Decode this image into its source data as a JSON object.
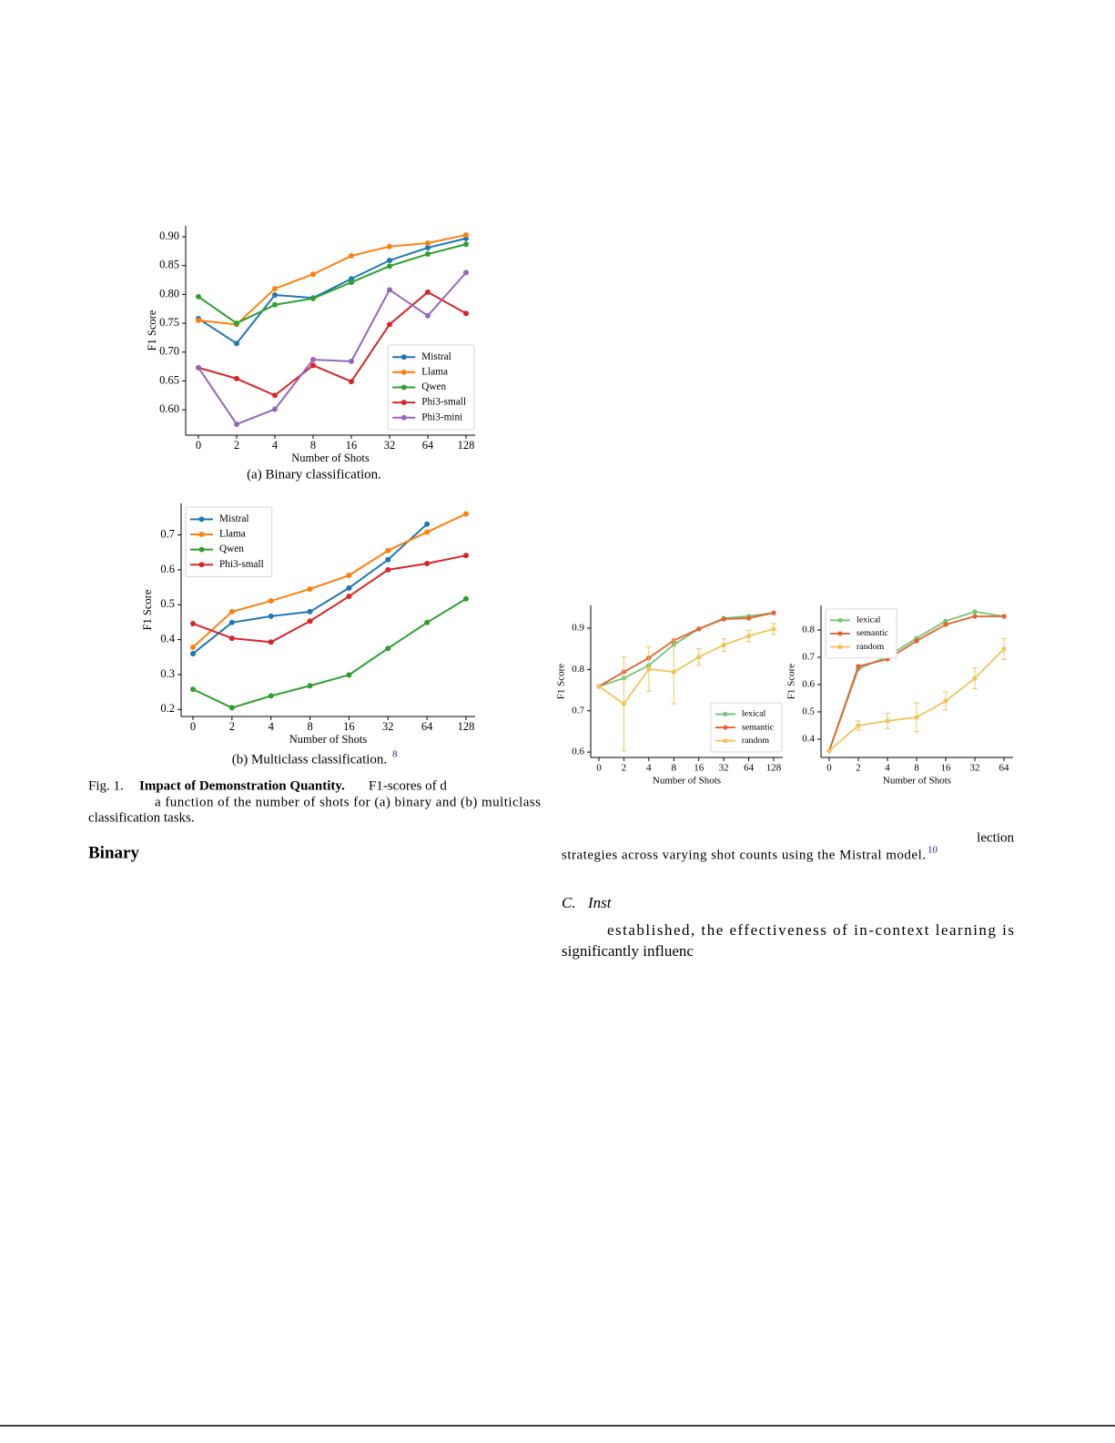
{
  "chart_data": [
    {
      "type": "line",
      "x_label": "Number of Shots",
      "y_label": "F1 Score",
      "categories": [
        "0",
        "2",
        "4",
        "8",
        "16",
        "32",
        "64",
        "128"
      ],
      "ylim": [
        0.556,
        0.919
      ],
      "yticks": [
        {
          "value": 0.6,
          "label": "0.60"
        },
        {
          "value": 0.65,
          "label": "0.65"
        },
        {
          "value": 0.7,
          "label": "0.70"
        },
        {
          "value": 0.75,
          "label": "0.75"
        },
        {
          "value": 0.8,
          "label": "0.80"
        },
        {
          "value": 0.85,
          "label": "0.85"
        },
        {
          "value": 0.9,
          "label": "0.90"
        }
      ],
      "legend": "lower right",
      "series": [
        {
          "name": "Mistral",
          "color": "#1f77b4",
          "values": [
            0.758,
            0.715,
            0.799,
            0.794,
            0.827,
            0.859,
            0.881,
            0.897
          ]
        },
        {
          "name": "Llama",
          "color": "#ff7f0e",
          "values": [
            0.755,
            0.748,
            0.81,
            0.835,
            0.867,
            0.883,
            0.889,
            0.903
          ]
        },
        {
          "name": "Qwen",
          "color": "#2ca02c",
          "values": [
            0.796,
            0.75,
            0.782,
            0.793,
            0.821,
            0.849,
            0.87,
            0.887
          ]
        },
        {
          "name": "Phi3-small",
          "color": "#d62728",
          "values": [
            0.673,
            0.654,
            0.625,
            0.677,
            0.649,
            0.748,
            0.804,
            0.767
          ]
        },
        {
          "name": "Phi3-mini",
          "color": "#9467bd",
          "values": [
            0.673,
            0.575,
            0.601,
            0.687,
            0.684,
            0.808,
            0.763,
            0.838
          ]
        }
      ]
    },
    {
      "type": "line",
      "x_label": "Number of Shots",
      "y_label": "F1 Score",
      "categories": [
        "0",
        "2",
        "4",
        "8",
        "16",
        "32",
        "64",
        "128"
      ],
      "ylim": [
        0.18,
        0.79
      ],
      "yticks": [
        0.2,
        0.3,
        0.4,
        0.5,
        0.6,
        0.7
      ],
      "legend": "upper left",
      "series": [
        {
          "name": "Mistral",
          "color": "#1f77b4",
          "values": [
            0.36,
            0.449,
            0.467,
            0.48,
            0.548,
            0.629,
            0.731,
            null
          ]
        },
        {
          "name": "Llama",
          "color": "#ff7f0e",
          "values": [
            0.378,
            0.48,
            0.511,
            0.545,
            0.584,
            0.655,
            0.708,
            0.76
          ]
        },
        {
          "name": "Qwen",
          "color": "#2ca02c",
          "values": [
            0.258,
            0.205,
            0.239,
            0.268,
            0.299,
            0.375,
            0.449,
            0.517
          ]
        },
        {
          "name": "Phi3-small",
          "color": "#d62728",
          "values": [
            0.446,
            0.404,
            0.393,
            0.453,
            0.524,
            0.6,
            0.618,
            0.641
          ]
        }
      ]
    },
    {
      "type": "line",
      "x_label": "Number of Shots",
      "y_label": "F1 Score",
      "categories": [
        "0",
        "2",
        "4",
        "8",
        "16",
        "32",
        "64",
        "128"
      ],
      "ylim": [
        0.587,
        0.955
      ],
      "yticks": [
        0.6,
        0.7,
        0.8,
        0.9
      ],
      "legend": "lower right",
      "series": [
        {
          "name": "lexical",
          "color": "#74c476",
          "values": [
            0.759,
            0.779,
            0.81,
            0.86,
            0.898,
            0.924,
            0.929,
            0.937
          ]
        },
        {
          "name": "semantic",
          "color": "#e8602c",
          "values": [
            0.759,
            0.794,
            0.828,
            0.87,
            0.898,
            0.922,
            0.924,
            0.937
          ]
        },
        {
          "name": "random",
          "color": "#f2c45a",
          "values": [
            0.759,
            0.717,
            0.801,
            0.794,
            0.83,
            0.859,
            0.881,
            0.898
          ],
          "errors": [
            0,
            0.114,
            0.054,
            0.077,
            0.02,
            0.015,
            0.014,
            0.013
          ]
        }
      ]
    },
    {
      "type": "line",
      "x_label": "Number of Shots",
      "y_label": "F1 Score",
      "categories": [
        "0",
        "2",
        "4",
        "8",
        "16",
        "32",
        "64"
      ],
      "ylim": [
        0.333,
        0.89
      ],
      "yticks": [
        0.4,
        0.5,
        0.6,
        0.7,
        0.8
      ],
      "legend": "upper left",
      "series": [
        {
          "name": "lexical",
          "color": "#74c476",
          "values": [
            0.357,
            0.657,
            0.703,
            0.77,
            0.833,
            0.867,
            0.85
          ]
        },
        {
          "name": "semantic",
          "color": "#e8602c",
          "values": [
            0.357,
            0.667,
            0.693,
            0.76,
            0.82,
            0.85,
            0.85
          ]
        },
        {
          "name": "random",
          "color": "#f2c45a",
          "values": [
            0.357,
            0.45,
            0.467,
            0.48,
            0.54,
            0.623,
            0.73
          ],
          "errors": [
            0,
            0.017,
            0.028,
            0.053,
            0.033,
            0.038,
            0.038
          ]
        }
      ]
    }
  ],
  "figure_1": {
    "subcaption_a": "(a) Binary classification.",
    "subcaption_b": "(b) Multiclass classification.",
    "footnote_mark_b": "8",
    "label": "Fig. 1.",
    "title": "Impact of Demonstration Quantity.",
    "caption_lines": [
      "F1-scores of d",
      "a function of the number of shots for (a) binary and (b) multiclass",
      "classification tasks."
    ]
  },
  "section_heading_left": "Binary",
  "figure_2": {
    "caption_lines": [
      "lection",
      "strategies across varying shot counts using the Mistral model."
    ],
    "footnote_mark": "10"
  },
  "section_c": {
    "number": "C.",
    "title": "Inst",
    "paragraph_lines": [
      "established, the effectiveness of in-context learning is",
      "significantly influenc"
    ]
  }
}
